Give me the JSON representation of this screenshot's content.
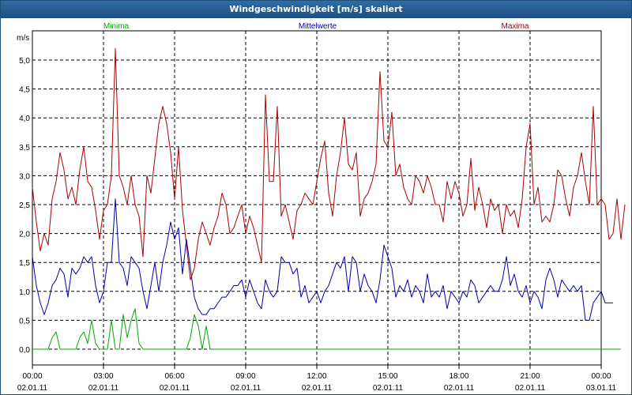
{
  "window": {
    "title": "Windgeschwindigkeit [m/s] skaliert"
  },
  "chart_data": {
    "type": "line",
    "title": "Windgeschwindigkeit [m/s] skaliert",
    "ylabel": "m/s",
    "ylim": [
      0,
      5.5
    ],
    "xlim": [
      0,
      1440
    ],
    "y_ticks": [
      "0,0",
      "0,5",
      "1,0",
      "1,5",
      "2,0",
      "2,5",
      "3,0",
      "3,5",
      "4,0",
      "4,5",
      "5,0"
    ],
    "y_tick_values": [
      0,
      0.5,
      1.0,
      1.5,
      2.0,
      2.5,
      3.0,
      3.5,
      4.0,
      4.5,
      5.0
    ],
    "x_ticks": [
      {
        "time": "00:00",
        "date": "02.01.11",
        "minute": 0
      },
      {
        "time": "03:00",
        "date": "02.01.11",
        "minute": 180
      },
      {
        "time": "06:00",
        "date": "02.01.11",
        "minute": 360
      },
      {
        "time": "09:00",
        "date": "02.01.11",
        "minute": 540
      },
      {
        "time": "12:00",
        "date": "02.01.11",
        "minute": 720
      },
      {
        "time": "15:00",
        "date": "02.01.11",
        "minute": 900
      },
      {
        "time": "18:00",
        "date": "02.01.11",
        "minute": 1080
      },
      {
        "time": "21:00",
        "date": "02.01.11",
        "minute": 1260
      },
      {
        "time": "00:00",
        "date": "03.01.11",
        "minute": 1440
      }
    ],
    "x_step_minutes": 10,
    "series": [
      {
        "name": "Minima",
        "color": "#00aa00",
        "values": [
          0.0,
          0.0,
          0.0,
          0.0,
          0.0,
          0.2,
          0.3,
          0.0,
          0.0,
          0.0,
          0.0,
          0.0,
          0.2,
          0.3,
          0.1,
          0.5,
          0.1,
          0.0,
          0.0,
          0.0,
          0.5,
          0.0,
          0.0,
          0.6,
          0.2,
          0.5,
          0.7,
          0.1,
          0.0,
          0.0,
          0.0,
          0.0,
          0.0,
          0.0,
          0.0,
          0.0,
          0.0,
          0.0,
          0.0,
          0.0,
          0.2,
          0.6,
          0.4,
          0.0,
          0.4,
          0.0,
          0.0,
          0.0,
          0.0,
          0.0,
          0.0,
          0.0,
          0.0,
          0.0,
          0.0,
          0.0,
          0.0,
          0.0,
          0.0,
          0.0,
          0.0,
          0.0,
          0.0,
          0.0,
          0.0,
          0.0,
          0.0,
          0.0,
          0.0,
          0.0,
          0.0,
          0.0,
          0.0,
          0.0,
          0.0,
          0.0,
          0.0,
          0.0,
          0.0,
          0.0,
          0.0,
          0.0,
          0.0,
          0.0,
          0.0,
          0.0,
          0.0,
          0.0,
          0.0,
          0.0,
          0.0,
          0.0,
          0.0,
          0.0,
          0.0,
          0.0,
          0.0,
          0.0,
          0.0,
          0.0,
          0.0,
          0.0,
          0.0,
          0.0,
          0.0,
          0.0,
          0.0,
          0.0,
          0.0,
          0.0,
          0.0,
          0.0,
          0.0,
          0.0,
          0.0,
          0.0,
          0.0,
          0.0,
          0.0,
          0.0,
          0.0,
          0.0,
          0.0,
          0.0,
          0.0,
          0.0,
          0.0,
          0.0,
          0.0,
          0.0,
          0.0,
          0.0,
          0.0,
          0.0,
          0.0,
          0.0,
          0.0,
          0.0,
          0.0,
          0.0,
          0.0,
          0.0,
          0.0,
          0.0,
          0.0,
          0.0,
          0.0,
          0.0,
          0.0,
          0.0
        ]
      },
      {
        "name": "Mittelwerte",
        "color": "#0000aa",
        "values": [
          1.6,
          1.1,
          0.8,
          0.6,
          0.8,
          1.1,
          1.2,
          1.4,
          1.3,
          0.9,
          1.4,
          1.3,
          1.4,
          1.6,
          1.5,
          1.6,
          1.1,
          0.8,
          1.0,
          1.5,
          1.5,
          2.6,
          1.5,
          1.4,
          1.1,
          1.6,
          1.5,
          1.4,
          1.0,
          0.7,
          1.1,
          1.5,
          1.0,
          1.5,
          1.8,
          2.2,
          1.9,
          2.1,
          1.3,
          1.9,
          1.4,
          0.9,
          0.7,
          0.6,
          0.6,
          0.7,
          0.7,
          0.8,
          0.9,
          0.9,
          1.0,
          1.1,
          1.1,
          1.2,
          0.9,
          1.2,
          1.0,
          0.8,
          0.7,
          1.2,
          1.0,
          0.9,
          1.0,
          1.6,
          1.5,
          1.5,
          1.3,
          1.4,
          0.9,
          1.1,
          0.8,
          0.9,
          1.0,
          0.8,
          1.0,
          1.1,
          1.3,
          1.5,
          1.4,
          1.6,
          1.0,
          1.6,
          1.5,
          1.0,
          1.3,
          1.1,
          1.0,
          0.8,
          1.2,
          1.8,
          1.6,
          1.4,
          0.9,
          1.1,
          1.0,
          1.2,
          0.9,
          1.1,
          1.0,
          0.8,
          1.3,
          0.9,
          1.0,
          0.9,
          1.1,
          0.7,
          1.0,
          0.9,
          0.8,
          1.0,
          0.9,
          1.2,
          1.1,
          0.8,
          0.9,
          1.0,
          1.1,
          1.0,
          1.0,
          1.2,
          1.6,
          1.1,
          1.3,
          1.0,
          0.9,
          1.1,
          0.8,
          1.0,
          0.9,
          0.7,
          1.2,
          1.4,
          1.2,
          0.9,
          1.2,
          1.1,
          1.0,
          1.1,
          1.0,
          1.1,
          0.5,
          0.5,
          0.8,
          0.9,
          1.0,
          0.8,
          0.8,
          0.8
        ]
      },
      {
        "name": "Maxima",
        "color": "#aa0000",
        "values": [
          2.8,
          2.2,
          1.7,
          2.0,
          1.8,
          2.6,
          2.9,
          3.4,
          3.1,
          2.6,
          2.8,
          2.5,
          3.1,
          3.5,
          2.9,
          2.8,
          2.4,
          1.9,
          2.4,
          2.5,
          3.0,
          5.2,
          3.0,
          2.8,
          2.5,
          3.0,
          2.5,
          2.3,
          1.6,
          3.0,
          2.7,
          3.3,
          3.9,
          4.2,
          3.9,
          3.4,
          2.6,
          3.5,
          2.4,
          1.8,
          1.2,
          1.4,
          1.9,
          2.2,
          2.0,
          1.8,
          2.1,
          2.3,
          2.7,
          2.5,
          2.0,
          2.1,
          2.3,
          2.5,
          2.0,
          2.3,
          2.1,
          1.8,
          1.5,
          4.4,
          2.9,
          2.9,
          4.2,
          2.3,
          2.5,
          2.2,
          1.9,
          2.4,
          2.5,
          2.7,
          2.6,
          2.5,
          2.9,
          3.3,
          3.6,
          2.7,
          2.3,
          3.0,
          3.4,
          4.0,
          3.2,
          3.1,
          3.4,
          2.3,
          2.6,
          2.7,
          2.9,
          3.2,
          4.8,
          3.6,
          3.5,
          4.1,
          3.0,
          3.2,
          2.8,
          2.6,
          2.5,
          3.0,
          2.9,
          2.7,
          3.0,
          2.8,
          2.5,
          2.5,
          2.2,
          2.9,
          2.6,
          2.9,
          2.7,
          2.3,
          2.5,
          3.3,
          2.4,
          2.8,
          2.5,
          2.1,
          2.6,
          2.4,
          2.5,
          2.0,
          2.5,
          2.3,
          2.4,
          2.1,
          2.6,
          3.5,
          3.9,
          2.5,
          2.8,
          2.2,
          2.3,
          2.2,
          2.5,
          3.1,
          3.0,
          2.6,
          2.3,
          2.8,
          3.0,
          3.4,
          2.9,
          2.5,
          4.2,
          2.5,
          2.6,
          2.5,
          1.9,
          2.0,
          2.6,
          1.9,
          2.5
        ]
      }
    ]
  }
}
